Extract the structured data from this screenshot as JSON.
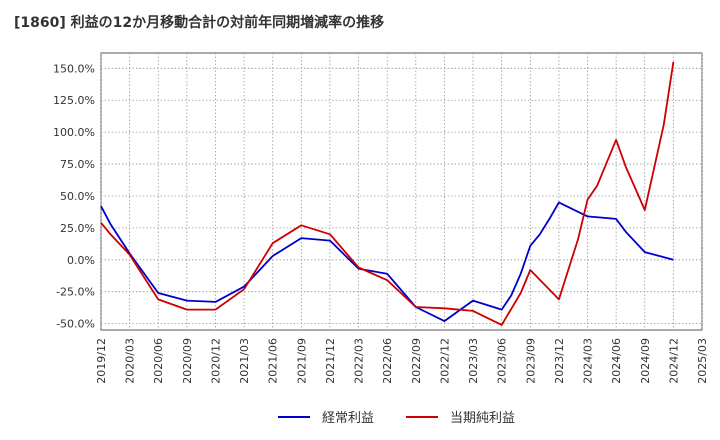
{
  "chart_data": {
    "type": "line",
    "title": "[1860]  利益の12か月移動合計の対前年同期増減率の推移",
    "xlabel": "",
    "ylabel": "",
    "ylim": [
      -55,
      162
    ],
    "yticks": [
      150,
      125,
      100,
      75,
      50,
      25,
      0,
      -25,
      -50
    ],
    "ytick_labels": [
      "150.0%",
      "125.0%",
      "100.0%",
      "75.0%",
      "50.0%",
      "25.0%",
      "0.0%",
      "-25.0%",
      "-50.0%"
    ],
    "x_start": "2019-12",
    "x_end": "2025-03",
    "xtick_labels": [
      "2019/12",
      "2020/03",
      "2020/06",
      "2020/09",
      "2020/12",
      "2021/03",
      "2021/06",
      "2021/09",
      "2021/12",
      "2022/03",
      "2022/06",
      "2022/09",
      "2022/12",
      "2023/03",
      "2023/06",
      "2023/09",
      "2023/12",
      "2024/03",
      "2024/06",
      "2024/09",
      "2024/12",
      "2025/03"
    ],
    "grid": true,
    "legend_position": "bottom-center",
    "series": [
      {
        "name": "経常利益",
        "color": "#0000cc",
        "points": [
          [
            "2019-12",
            42
          ],
          [
            "2020-01",
            28
          ],
          [
            "2020-03",
            5
          ],
          [
            "2020-06",
            -26
          ],
          [
            "2020-09",
            -32
          ],
          [
            "2020-12",
            -33
          ],
          [
            "2021-03",
            -21
          ],
          [
            "2021-06",
            3
          ],
          [
            "2021-09",
            17
          ],
          [
            "2021-12",
            15
          ],
          [
            "2022-03",
            -7
          ],
          [
            "2022-06",
            -11
          ],
          [
            "2022-09",
            -37
          ],
          [
            "2022-12",
            -48
          ],
          [
            "2023-03",
            -32
          ],
          [
            "2023-06",
            -39
          ],
          [
            "2023-07",
            -28
          ],
          [
            "2023-08",
            -11
          ],
          [
            "2023-09",
            11
          ],
          [
            "2023-10",
            20
          ],
          [
            "2023-11",
            32
          ],
          [
            "2023-12",
            45
          ],
          [
            "2024-03",
            34
          ],
          [
            "2024-06",
            32
          ],
          [
            "2024-07",
            22
          ],
          [
            "2024-09",
            6
          ],
          [
            "2024-12",
            0
          ]
        ]
      },
      {
        "name": "当期純利益",
        "color": "#cc0000",
        "points": [
          [
            "2019-12",
            29
          ],
          [
            "2020-01",
            20
          ],
          [
            "2020-03",
            4
          ],
          [
            "2020-06",
            -31
          ],
          [
            "2020-09",
            -39
          ],
          [
            "2020-12",
            -39
          ],
          [
            "2021-03",
            -23
          ],
          [
            "2021-06",
            13
          ],
          [
            "2021-09",
            27
          ],
          [
            "2021-12",
            20
          ],
          [
            "2022-03",
            -6
          ],
          [
            "2022-06",
            -16
          ],
          [
            "2022-09",
            -37
          ],
          [
            "2022-12",
            -38
          ],
          [
            "2023-03",
            -40
          ],
          [
            "2023-06",
            -51
          ],
          [
            "2023-08",
            -26
          ],
          [
            "2023-09",
            -8
          ],
          [
            "2023-12",
            -31
          ],
          [
            "2024-02",
            16
          ],
          [
            "2024-03",
            47
          ],
          [
            "2024-04",
            58
          ],
          [
            "2024-05",
            76
          ],
          [
            "2024-06",
            94
          ],
          [
            "2024-07",
            73
          ],
          [
            "2024-09",
            39
          ],
          [
            "2024-11",
            106
          ],
          [
            "2024-12",
            155
          ]
        ]
      }
    ]
  }
}
